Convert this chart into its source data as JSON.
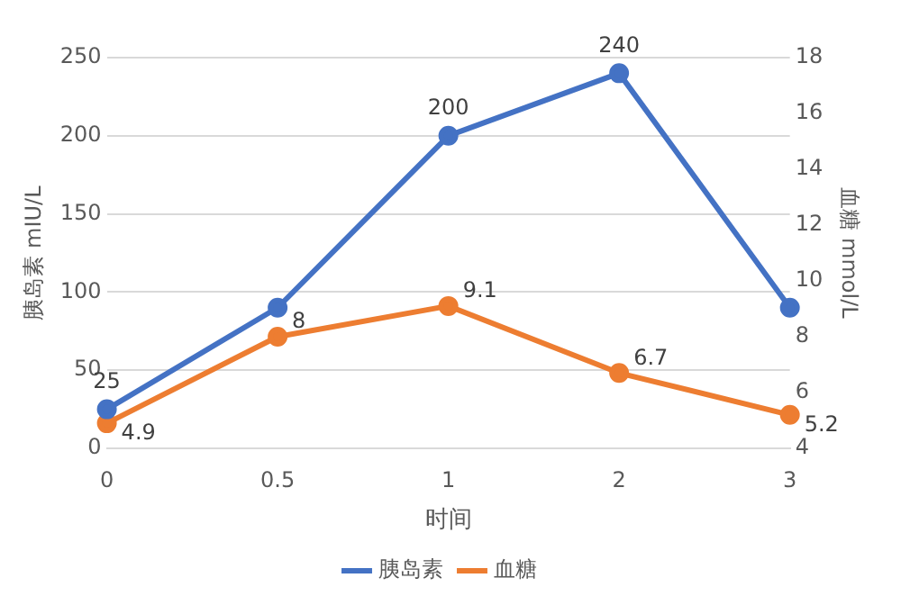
{
  "chart_data": {
    "type": "line",
    "xlabel": "时间",
    "ylabel": "胰岛素 mIU/L",
    "y2label": "血糖 mmol/L",
    "categories": [
      "0",
      "0.5",
      "1",
      "2",
      "3"
    ],
    "series": [
      {
        "name": "胰岛素",
        "color": "#4472c4",
        "values": [
          25,
          90,
          200,
          240,
          90
        ],
        "value_labels": [
          "25",
          null,
          "200",
          "240",
          null
        ]
      },
      {
        "name": "血糖",
        "color": "#ed7d31",
        "values": [
          4.9,
          8,
          9.1,
          6.7,
          5.2
        ],
        "axis": "y2",
        "value_labels": [
          "4.9",
          "8",
          "9.1",
          "6.7",
          "5.2"
        ]
      }
    ],
    "ylim": [
      0,
      250
    ],
    "yticks": [
      0,
      50,
      100,
      150,
      200,
      250
    ],
    "y2lim": [
      4,
      18
    ],
    "y2ticks": [
      4,
      6,
      8,
      10,
      12,
      14,
      16,
      18
    ],
    "grid": "y",
    "legend": "bottom",
    "marker": "circle",
    "line_style": "solid"
  }
}
